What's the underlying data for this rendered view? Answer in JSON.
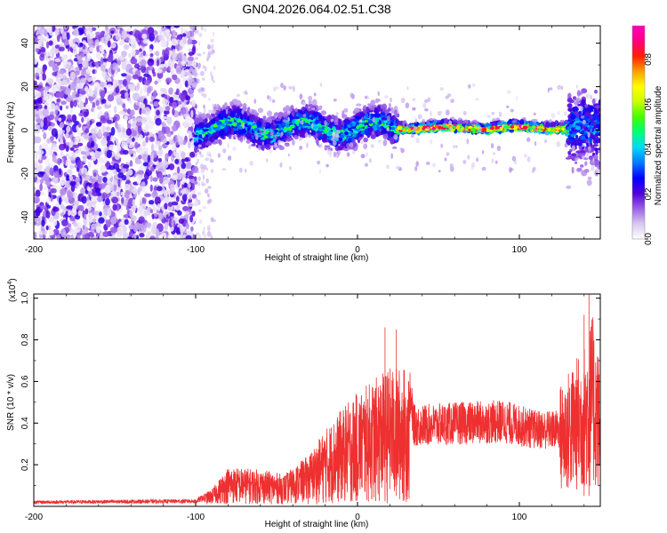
{
  "title": "GN04.2026.064.02.51.C38",
  "chart_data": [
    {
      "type": "heatmap",
      "name": "spectrogram",
      "xlabel": "Height of straight line (km)",
      "ylabel": "Frequency (Hz)",
      "xlim": [
        -200,
        150
      ],
      "ylim": [
        -50,
        48
      ],
      "xticks": [
        -200,
        -100,
        0,
        100
      ],
      "xtick_labels": [
        "-200",
        "-100",
        "0",
        "100"
      ],
      "yticks": [
        -40,
        -20,
        0,
        20,
        40
      ],
      "ytick_labels": [
        "-40",
        "-20",
        "0",
        "20",
        "40"
      ],
      "noise_region_x": [
        -200,
        -100
      ],
      "signal_band_center_hz": 1,
      "segments": [
        {
          "x_start": -100,
          "x_end": 25,
          "band_hz": [
            -10,
            12
          ],
          "peak_amplitude": 0.55
        },
        {
          "x_start": 25,
          "x_end": 130,
          "band_hz": [
            -2,
            4
          ],
          "peak_amplitude": 0.95
        },
        {
          "x_start": 130,
          "x_end": 150,
          "band_hz": [
            -30,
            20
          ],
          "peak_amplitude": 0.4
        }
      ],
      "colorbar": {
        "label": "Normalized spectral amplitude",
        "range": [
          0,
          0.95
        ],
        "ticks": [
          0.0,
          0.2,
          0.4,
          0.6,
          0.8
        ],
        "tick_labels": [
          "0.0",
          "0.2",
          "0.4",
          "0.6",
          "0.8"
        ],
        "colormap": [
          "#ffffff",
          "#d8c8f0",
          "#9a60e8",
          "#5000d8",
          "#0000ff",
          "#0078ff",
          "#00d8ff",
          "#00ff78",
          "#40ff00",
          "#c8ff00",
          "#ffff00",
          "#ffa000",
          "#ff2000",
          "#ff0080",
          "#ff00c0"
        ]
      }
    },
    {
      "type": "line",
      "name": "snr",
      "xlabel": "Height of straight line (km)",
      "ylabel": "SNR (10 * v/v)",
      "y_scale_label": "(x10",
      "y_scale_exponent": "4",
      "y_scale_suffix": ")",
      "xlim": [
        -200,
        150
      ],
      "ylim": [
        0,
        1.02
      ],
      "xticks": [
        -200,
        -100,
        0,
        100
      ],
      "xtick_labels": [
        "-200",
        "-100",
        "0",
        "100"
      ],
      "yticks": [
        0.2,
        0.4,
        0.6,
        0.8,
        1.0
      ],
      "ytick_labels": [
        "0.2",
        "0.4",
        "0.6",
        "0.8",
        "1.0"
      ],
      "line_color": "#ee3030",
      "envelope": [
        {
          "x": -200,
          "y": 0.02
        },
        {
          "x": -100,
          "y": 0.025
        },
        {
          "x": -90,
          "y": 0.06
        },
        {
          "x": -80,
          "y": 0.15
        },
        {
          "x": -60,
          "y": 0.14
        },
        {
          "x": -45,
          "y": 0.12
        },
        {
          "x": -30,
          "y": 0.2
        },
        {
          "x": -20,
          "y": 0.3
        },
        {
          "x": -10,
          "y": 0.38
        },
        {
          "x": 0,
          "y": 0.45
        },
        {
          "x": 10,
          "y": 0.5
        },
        {
          "x": 20,
          "y": 0.55
        },
        {
          "x": 25,
          "y": 0.55
        },
        {
          "x": 32,
          "y": 0.55
        },
        {
          "x": 35,
          "y": 0.4
        },
        {
          "x": 60,
          "y": 0.41
        },
        {
          "x": 90,
          "y": 0.42
        },
        {
          "x": 110,
          "y": 0.38
        },
        {
          "x": 125,
          "y": 0.38
        },
        {
          "x": 140,
          "y": 0.5
        },
        {
          "x": 145,
          "y": 0.6
        },
        {
          "x": 150,
          "y": 0.45
        }
      ],
      "peaks": [
        {
          "x": 17,
          "y": 0.86
        },
        {
          "x": 24,
          "y": 0.85
        },
        {
          "x": 140,
          "y": 0.92
        },
        {
          "x": 143,
          "y": 1.02
        }
      ]
    }
  ]
}
